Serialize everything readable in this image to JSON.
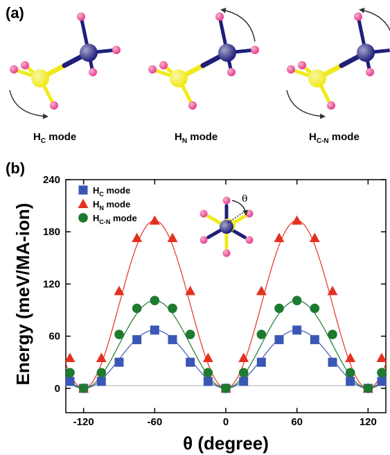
{
  "panel_a": {
    "label": "(a)",
    "modes": [
      {
        "main": "H",
        "sub": "C",
        "rest": " mode"
      },
      {
        "main": "H",
        "sub": "N",
        "rest": " mode"
      },
      {
        "main": "H",
        "sub": "C-N",
        "rest": " mode"
      }
    ]
  },
  "panel_b": {
    "label": "(b)",
    "inset_angle_symbol": "θ"
  },
  "colors": {
    "carbon": "#f0ea1a",
    "nitrogen": "#1f1f7a",
    "hydrogen": "#e83e8c",
    "hc_series": "#3a57b5",
    "hn_series": "#e53020",
    "hcn_series": "#1e7a2e"
  },
  "chart_data": {
    "type": "line",
    "xlabel": "θ (degree)",
    "ylabel": "Energy (meV/MA-ion)",
    "xlim": [
      -135,
      135
    ],
    "ylim": [
      -28,
      240
    ],
    "xticks": [
      -120,
      -60,
      0,
      60,
      120
    ],
    "yticks": [
      0,
      60,
      120,
      180,
      240
    ],
    "grid": false,
    "legend_position": "top-left",
    "series": [
      {
        "name": "HC mode",
        "label_main": "H",
        "label_sub": "C",
        "label_rest": " mode",
        "marker": "square",
        "color": "#3a57b5",
        "x": [
          -135,
          -120,
          -105,
          -90,
          -75,
          -60,
          -45,
          -30,
          -15,
          0,
          15,
          30,
          45,
          60,
          75,
          90,
          105,
          120,
          135
        ],
        "y": [
          8,
          0,
          8,
          30,
          56,
          67,
          56,
          30,
          8,
          0,
          8,
          30,
          56,
          67,
          56,
          30,
          8,
          0,
          8
        ]
      },
      {
        "name": "HN mode",
        "label_main": "H",
        "label_sub": "N",
        "label_rest": " mode",
        "marker": "triangle",
        "color": "#e53020",
        "x": [
          -135,
          -120,
          -105,
          -90,
          -75,
          -60,
          -45,
          -30,
          -15,
          0,
          15,
          30,
          45,
          60,
          75,
          90,
          105,
          120,
          135
        ],
        "y": [
          35,
          0,
          35,
          112,
          173,
          193,
          173,
          112,
          35,
          0,
          35,
          112,
          173,
          193,
          173,
          112,
          35,
          0,
          35
        ]
      },
      {
        "name": "HC-N mode",
        "label_main": "H",
        "label_sub": "C-N",
        "label_rest": " mode",
        "marker": "circle",
        "color": "#1e7a2e",
        "x": [
          -135,
          -120,
          -105,
          -90,
          -75,
          -60,
          -45,
          -30,
          -15,
          0,
          15,
          30,
          45,
          60,
          75,
          90,
          105,
          120,
          135
        ],
        "y": [
          18,
          0,
          18,
          62,
          92,
          101,
          92,
          62,
          18,
          0,
          18,
          62,
          92,
          101,
          92,
          62,
          18,
          0,
          18
        ]
      }
    ]
  }
}
